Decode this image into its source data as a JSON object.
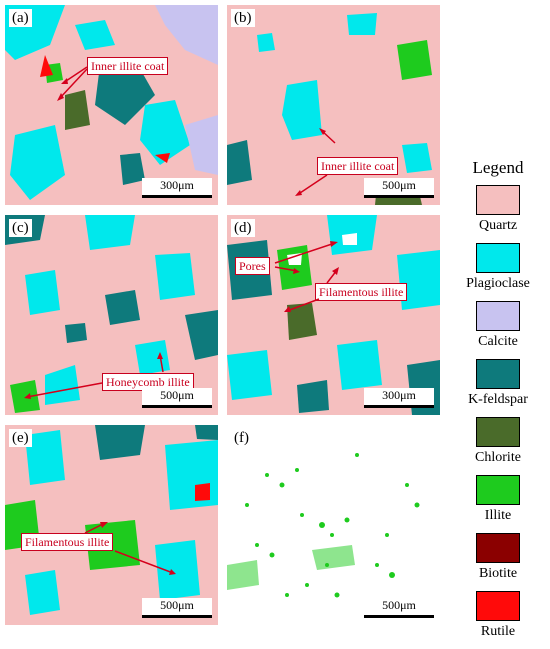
{
  "figure": {
    "panels": [
      {
        "id": "a",
        "label": "(a)",
        "scale": "300μm",
        "annotations": [
          {
            "text": "Inner illite coat"
          }
        ]
      },
      {
        "id": "b",
        "label": "(b)",
        "scale": "500μm",
        "annotations": [
          {
            "text": "Inner illite coat"
          }
        ]
      },
      {
        "id": "c",
        "label": "(c)",
        "scale": "500μm",
        "annotations": [
          {
            "text": "Honeycomb illite"
          }
        ]
      },
      {
        "id": "d",
        "label": "(d)",
        "scale": "300μm",
        "annotations": [
          {
            "text": "Pores"
          },
          {
            "text": "Filamentous illite"
          }
        ]
      },
      {
        "id": "e",
        "label": "(e)",
        "scale": "500μm",
        "annotations": [
          {
            "text": "Filamentous illite"
          }
        ]
      },
      {
        "id": "f",
        "label": "(f)",
        "scale": "500μm",
        "annotations": []
      }
    ]
  },
  "legend": {
    "title": "Legend",
    "items": [
      {
        "name": "Quartz",
        "color": "#f5bfbf"
      },
      {
        "name": "Plagioclase",
        "color": "#00e8ec"
      },
      {
        "name": "Calcite",
        "color": "#c8c3f0"
      },
      {
        "name": "K-feldspar",
        "color": "#0e7a7c"
      },
      {
        "name": "Chlorite",
        "color": "#4a6b2a"
      },
      {
        "name": "Illite",
        "color": "#1ecb1e"
      },
      {
        "name": "Biotite",
        "color": "#8b0000"
      },
      {
        "name": "Rutile",
        "color": "#ff0a0a"
      }
    ]
  }
}
